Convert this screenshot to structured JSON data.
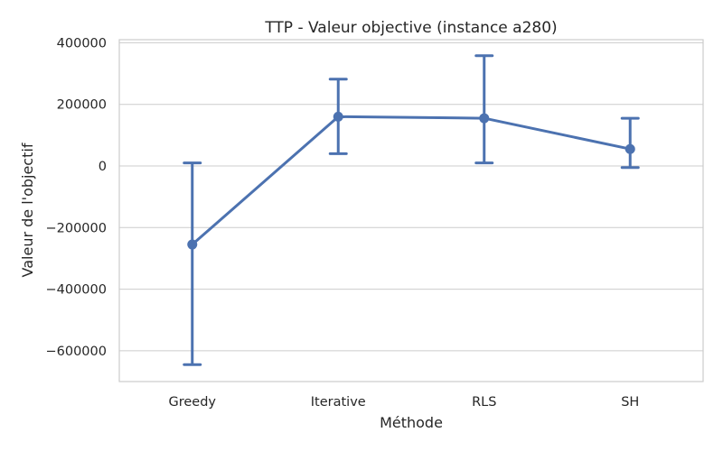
{
  "chart_data": {
    "type": "line",
    "title": "TTP - Valeur objective (instance a280)",
    "xlabel": "Méthode",
    "ylabel": "Valeur de l'objectif",
    "categories": [
      "Greedy",
      "Iterative",
      "RLS",
      "SH"
    ],
    "series": [
      {
        "values": [
          -255000,
          160000,
          155000,
          55000
        ],
        "error_low": [
          -645000,
          40000,
          10000,
          -5000
        ],
        "error_high": [
          10000,
          282000,
          358000,
          155000
        ],
        "color": "#4c72b0"
      }
    ],
    "ylim": [
      -700000,
      410000
    ],
    "yticks": [
      -600000,
      -400000,
      -200000,
      0,
      200000,
      400000
    ],
    "ytick_labels": [
      "−600000",
      "−400000",
      "−200000",
      "0",
      "200000",
      "400000"
    ],
    "grid": true,
    "legend": "none"
  }
}
